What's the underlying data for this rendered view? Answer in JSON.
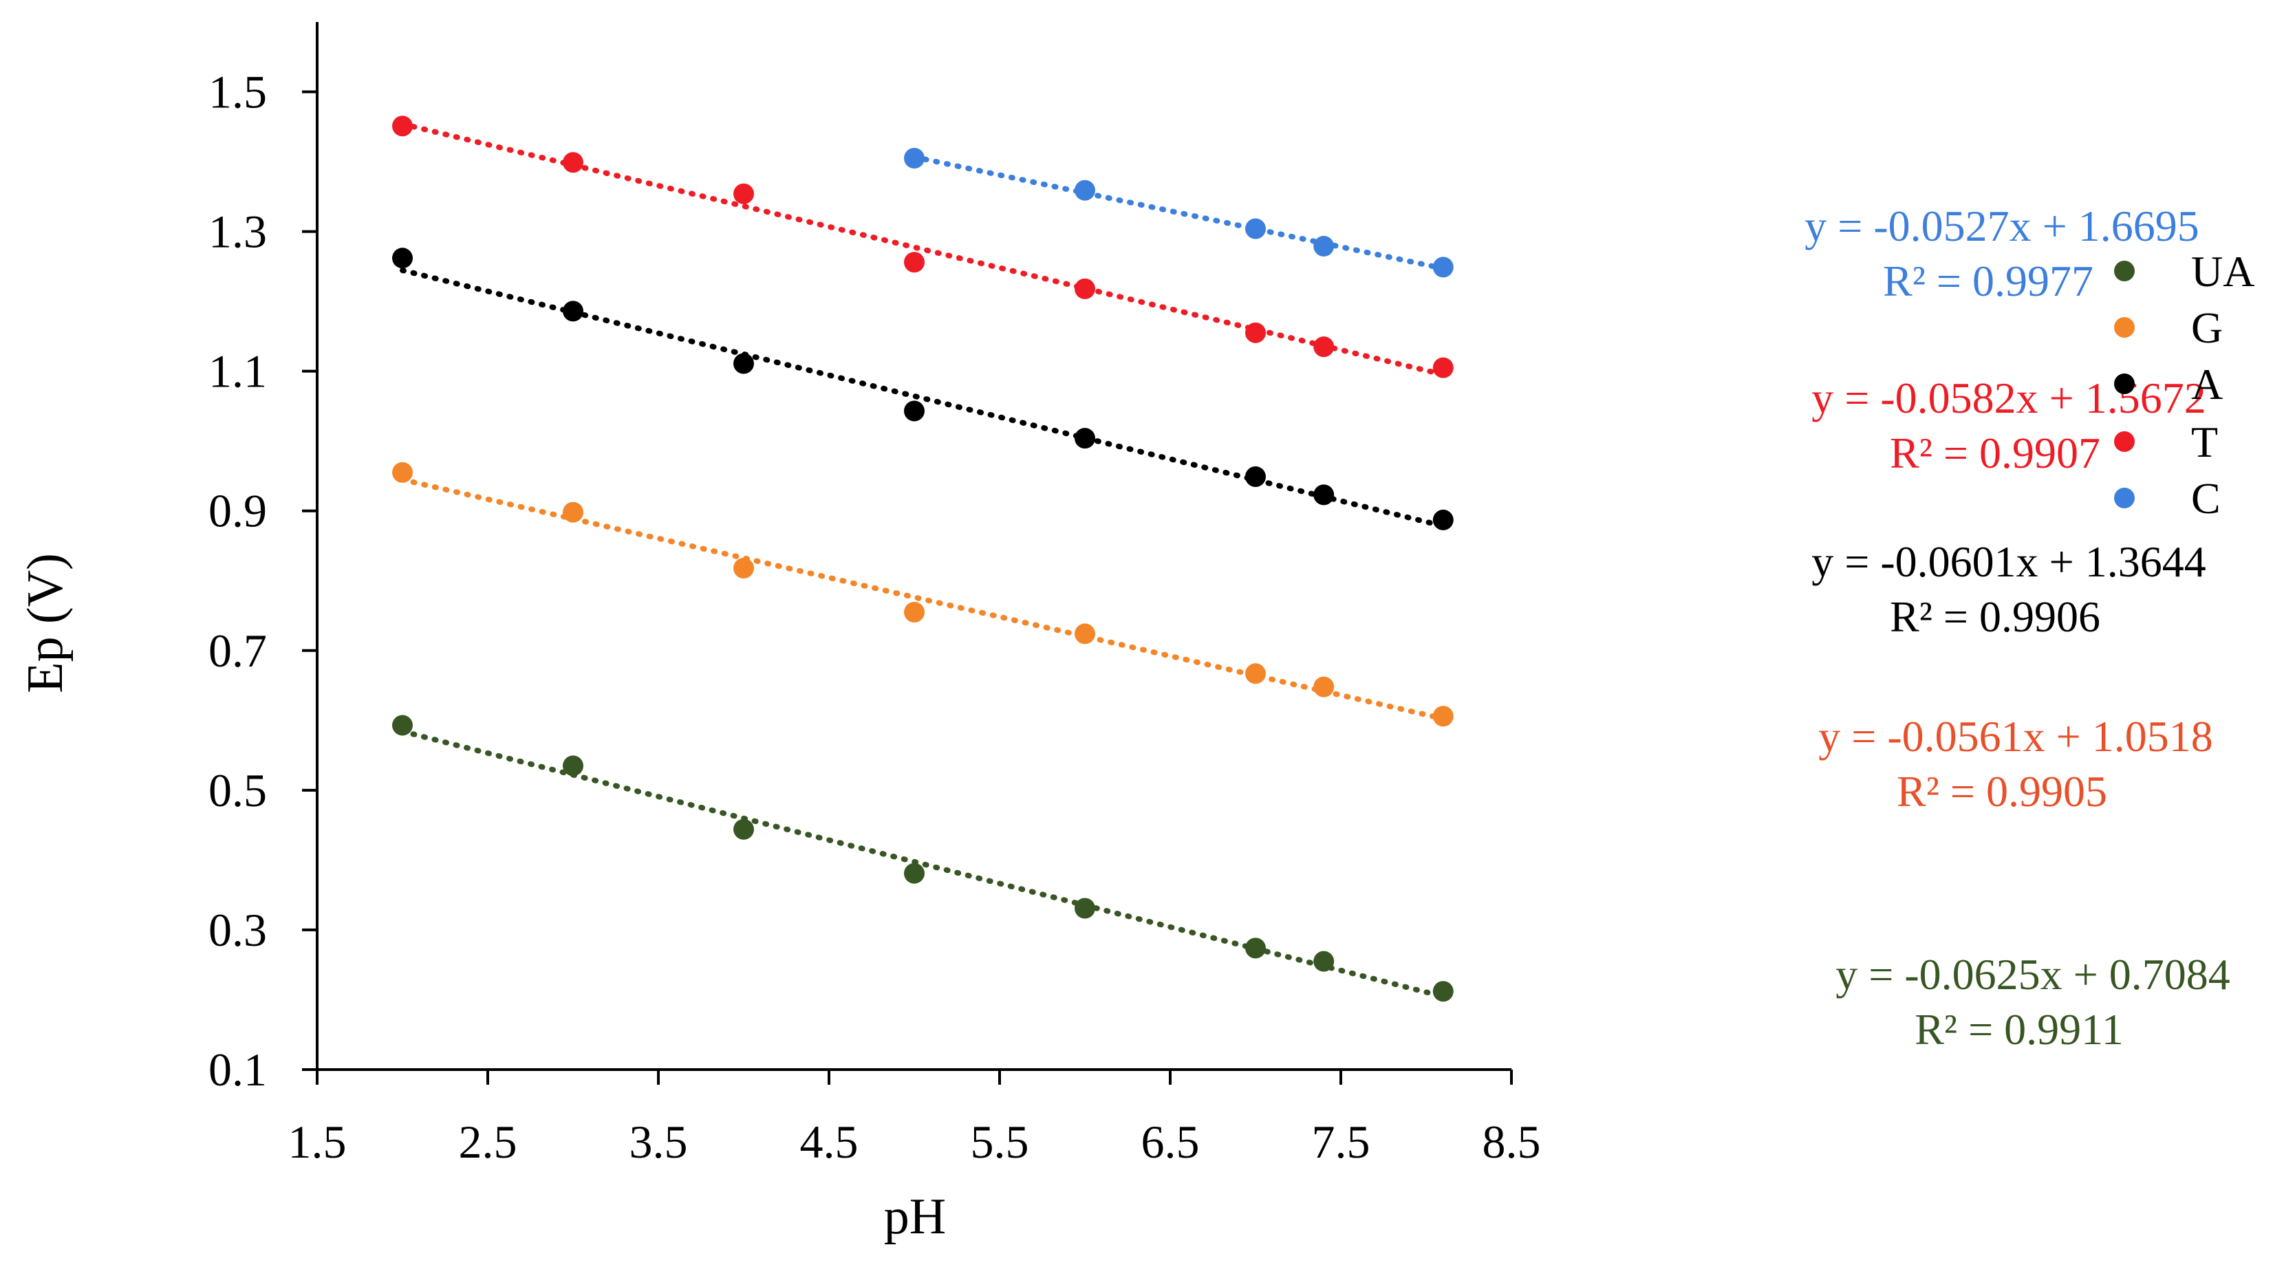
{
  "chart_data": {
    "type": "scatter",
    "title": "",
    "xlabel": "pH",
    "ylabel": "Ep (V)",
    "xlim": [
      1.5,
      8.5
    ],
    "ylim": [
      0.1,
      1.6
    ],
    "x_ticks": [
      "1.5",
      "2.5",
      "3.5",
      "4.5",
      "5.5",
      "6.5",
      "7.5",
      "8.5"
    ],
    "y_ticks": [
      "0.1",
      "0.3",
      "0.5",
      "0.7",
      "0.9",
      "1.1",
      "1.3",
      "1.5"
    ],
    "grid": false,
    "legend_position": "right",
    "series": [
      {
        "name": "UA",
        "color": "#375623",
        "trendline": "dotted linear",
        "x": [
          2,
          3,
          4,
          5,
          6,
          7,
          7.4,
          8.1
        ],
        "y": [
          0.593,
          0.535,
          0.444,
          0.381,
          0.331,
          0.274,
          0.255,
          0.212
        ],
        "equation": "y = -0.0625x + 0.7084",
        "r2": "R² = 0.9911"
      },
      {
        "name": "G",
        "color": "#F4862A",
        "equation_color": "#E8502A",
        "trendline": "dotted linear",
        "x": [
          2,
          3,
          4,
          5,
          6,
          7,
          7.4,
          8.1
        ],
        "y": [
          0.955,
          0.898,
          0.818,
          0.755,
          0.724,
          0.667,
          0.648,
          0.606
        ],
        "equation": "y = -0.0561x + 1.0518",
        "r2": "R² = 0.9905"
      },
      {
        "name": "A",
        "color": "#000000",
        "trendline": "dotted linear",
        "x": [
          2,
          3,
          4,
          5,
          6,
          7,
          7.4,
          8.1
        ],
        "y": [
          1.262,
          1.186,
          1.111,
          1.043,
          1.004,
          0.949,
          0.923,
          0.887
        ],
        "equation": "y = -0.0601x + 1.3644",
        "r2": "R² = 0.9906"
      },
      {
        "name": "T",
        "color": "#EE1C24",
        "trendline": "dotted linear",
        "x": [
          2,
          3,
          4,
          5,
          6,
          7,
          7.4,
          8.1
        ],
        "y": [
          1.451,
          1.399,
          1.354,
          1.256,
          1.218,
          1.155,
          1.135,
          1.105
        ],
        "equation": "y = -0.0582x + 1.5672",
        "r2": "R² = 0.9907"
      },
      {
        "name": "C",
        "color": "#3D7FDC",
        "trendline": "dotted linear",
        "x": [
          5,
          6,
          7,
          7.4,
          8.1
        ],
        "y": [
          1.405,
          1.359,
          1.304,
          1.279,
          1.249
        ],
        "equation": "y = -0.0527x + 1.6695",
        "r2": "R² = 0.9977"
      }
    ]
  }
}
